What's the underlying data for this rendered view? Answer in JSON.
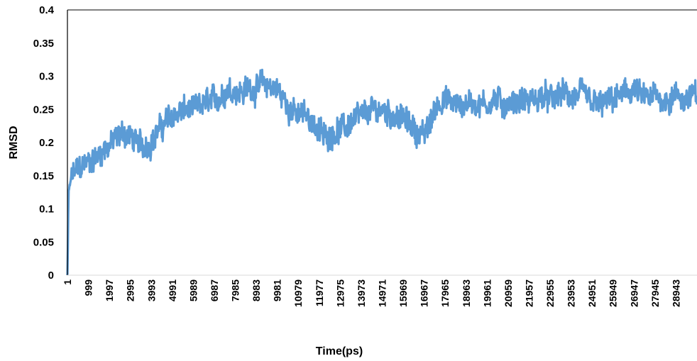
{
  "chart_data": {
    "type": "line",
    "title": "",
    "xlabel": "Time(ps)",
    "ylabel": "RMSD",
    "ylim": [
      0,
      0.4
    ],
    "xlim": [
      1,
      29941
    ],
    "grid": false,
    "legend": "none",
    "y_ticks": [
      "0",
      "0.05",
      "0.1",
      "0.15",
      "0.2",
      "0.25",
      "0.3",
      "0.35",
      "0.4"
    ],
    "x_tick_labels": [
      "1",
      "999",
      "1997",
      "2995",
      "3993",
      "4991",
      "5989",
      "6987",
      "7985",
      "8983",
      "9981",
      "10979",
      "11977",
      "12975",
      "13973",
      "14971",
      "15969",
      "16967",
      "17965",
      "18963",
      "19961",
      "20959",
      "21957",
      "22955",
      "23953",
      "24951",
      "25949",
      "26947",
      "27945",
      "28943"
    ],
    "series_color": "#5b9bd5",
    "series": [
      {
        "x": [
          1,
          60,
          150,
          300,
          500,
          700,
          999,
          1300,
          1600,
          1997,
          2300,
          2600,
          2995,
          3300,
          3600,
          3993,
          4300,
          4600,
          4991,
          5300,
          5600,
          5989,
          6300,
          6600,
          6987,
          7300,
          7600,
          7985,
          8300,
          8600,
          8983,
          9300,
          9600,
          9981,
          10300,
          10600,
          10979,
          11300,
          11600,
          11977,
          12300,
          12600,
          12975,
          13300,
          13600,
          13973,
          14300,
          14600,
          14971,
          15300,
          15600,
          15969,
          16300,
          16600,
          16967,
          17300,
          17600,
          17965,
          18300,
          18600,
          18963,
          19300,
          19600,
          19961,
          20300,
          20600,
          20959,
          21300,
          21600,
          21957,
          22300,
          22600,
          22955,
          23300,
          23600,
          23953,
          24300,
          24600,
          24951,
          25300,
          25600,
          25949,
          26300,
          26600,
          26947,
          27300,
          27600,
          27945,
          28300,
          28600,
          28943,
          29300,
          29600,
          29941
        ],
        "values": [
          0.0,
          0.12,
          0.14,
          0.155,
          0.16,
          0.165,
          0.17,
          0.175,
          0.185,
          0.195,
          0.205,
          0.215,
          0.21,
          0.2,
          0.195,
          0.2,
          0.215,
          0.23,
          0.24,
          0.245,
          0.25,
          0.25,
          0.255,
          0.26,
          0.265,
          0.27,
          0.28,
          0.28,
          0.275,
          0.285,
          0.28,
          0.29,
          0.285,
          0.28,
          0.265,
          0.25,
          0.24,
          0.245,
          0.235,
          0.215,
          0.21,
          0.215,
          0.22,
          0.225,
          0.235,
          0.24,
          0.245,
          0.25,
          0.25,
          0.245,
          0.24,
          0.235,
          0.23,
          0.215,
          0.21,
          0.235,
          0.26,
          0.265,
          0.26,
          0.255,
          0.26,
          0.26,
          0.255,
          0.26,
          0.265,
          0.26,
          0.255,
          0.26,
          0.265,
          0.26,
          0.265,
          0.27,
          0.265,
          0.27,
          0.275,
          0.265,
          0.27,
          0.275,
          0.26,
          0.255,
          0.26,
          0.265,
          0.27,
          0.275,
          0.28,
          0.27,
          0.265,
          0.27,
          0.265,
          0.265,
          0.27,
          0.265,
          0.27,
          0.27
        ]
      }
    ]
  }
}
